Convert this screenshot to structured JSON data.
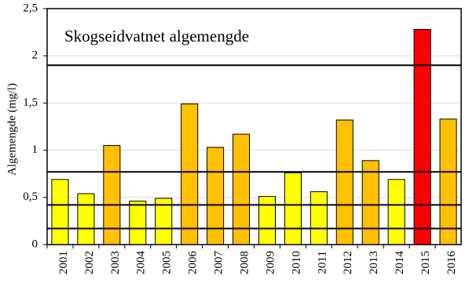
{
  "chart_data": {
    "type": "bar",
    "title": "Skogseidvatnet algemengde",
    "y_label": "Algemengde (mg/l)",
    "categories": [
      "2001",
      "2002",
      "2003",
      "2004",
      "2005",
      "2006",
      "2007",
      "2008",
      "2009",
      "2010",
      "2011",
      "2012",
      "2013",
      "2014",
      "2015",
      "2016"
    ],
    "values": [
      0.69,
      0.54,
      1.05,
      0.46,
      0.49,
      1.49,
      1.03,
      1.17,
      0.51,
      0.76,
      0.56,
      1.32,
      0.89,
      0.69,
      2.28,
      1.33
    ],
    "colors": [
      "#ffff00",
      "#ffff00",
      "#ffc000",
      "#ffff00",
      "#ffff00",
      "#ffc000",
      "#ffc000",
      "#ffc000",
      "#ffff00",
      "#ffff00",
      "#ffff00",
      "#ffc000",
      "#ffc000",
      "#ffff00",
      "#ff0000",
      "#ffc000"
    ],
    "ylim": [
      0,
      2.5
    ],
    "yticks": [
      0,
      {
        "value": 0.5,
        "label": "0,5"
      },
      1,
      {
        "value": 1.5,
        "label": "1,5"
      },
      2,
      {
        "value": 2.5,
        "label": "2,5"
      }
    ],
    "grid": true,
    "reference_lines": [
      0.17,
      0.42,
      0.77,
      1.9
    ]
  }
}
